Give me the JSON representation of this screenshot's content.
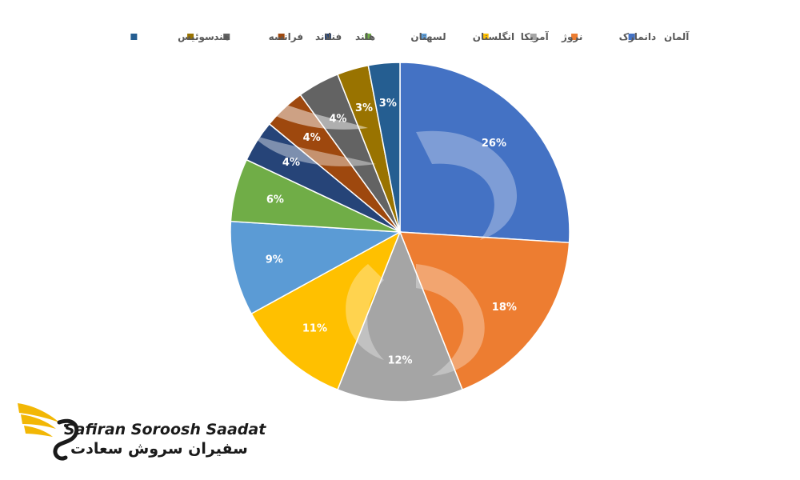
{
  "chart_data": {
    "type": "pie",
    "title": "",
    "legend_position": "top",
    "categories": [
      "آلمان",
      "دانمارک",
      "نروژ",
      "آمریکا",
      "انگلستان",
      "لسهتان",
      "هلند",
      "فنلاند",
      "فرانسه",
      "هند",
      "سوئیس"
    ],
    "values": [
      26,
      18,
      12,
      11,
      9,
      6,
      4,
      4,
      4,
      3,
      3
    ],
    "value_labels": [
      "26%",
      "18%",
      "12%",
      "11%",
      "9%",
      "6%",
      "4%",
      "4%",
      "4%",
      "3%",
      "3%"
    ],
    "colors": [
      "#4472C4",
      "#ED7D31",
      "#A5A5A5",
      "#FFC000",
      "#5B9BD5",
      "#70AD47",
      "#264478",
      "#9E480E",
      "#636363",
      "#997300",
      "#255E91"
    ]
  },
  "logo": {
    "latin": "Safiran Soroosh Saadat",
    "persian": "سفیران سروش سعادت"
  }
}
